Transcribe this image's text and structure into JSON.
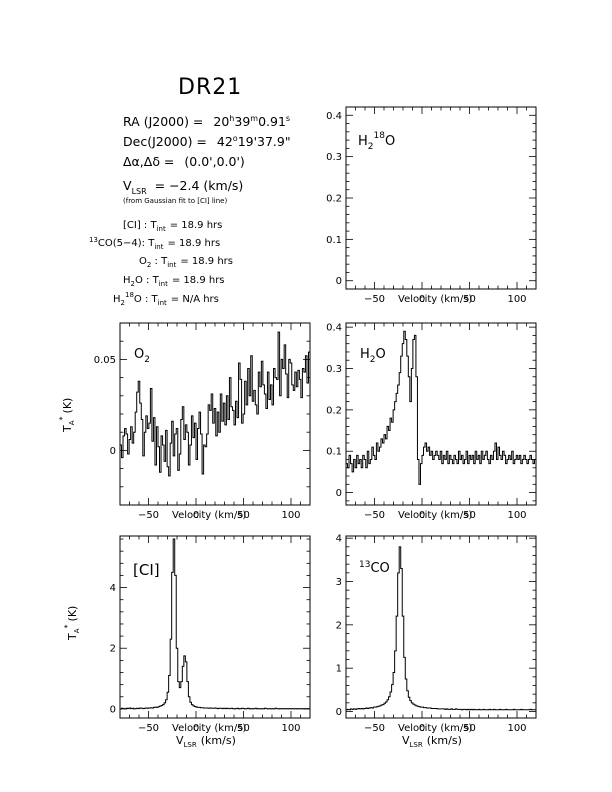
{
  "header": {
    "title": "DR21",
    "ra": {
      "label": "RA (J2000) =",
      "h": "20",
      "m": "39",
      "s": "0.91"
    },
    "dec": {
      "label": "Dec(J2000) =",
      "d": "42",
      "arcmin": "19",
      "arcsec": "37.9\""
    },
    "offset": {
      "label": "Δα,Δδ =",
      "value": "(0.0',0.0')"
    },
    "vlsr": {
      "label": "V",
      "sub": "LSR",
      "value": "= −2.4 (km/s)"
    },
    "vlsr_note": "(from Gaussian fit to [CI] line)"
  },
  "integrations": [
    {
      "pre": "",
      "sup": "",
      "name": "[CI]",
      "colon": " : T",
      "sub": "int",
      "value": "= 18.9 hrs"
    },
    {
      "pre": "",
      "sup": "13",
      "name": "CO(5−4):",
      "colon": " T",
      "sub": "int",
      "value": "= 18.9 hrs"
    },
    {
      "pre": "O",
      "sub0": "2",
      "name": "",
      "colon": " : T",
      "sub": "int",
      "value": "= 18.9 hrs"
    },
    {
      "pre": "H",
      "sub0": "2",
      "name": "O",
      "colon": " : T",
      "sub": "int",
      "value": "= 18.9 hrs"
    },
    {
      "pre": "H",
      "sub0": "2",
      "sup": "18",
      "name": "O",
      "colon": " : T",
      "sub": "int",
      "value": "= N/A hrs"
    }
  ],
  "axis_labels": {
    "x": "Velocity (km/s)",
    "x_bottom_main": "Velocity (km/s)",
    "x_bottom_vlsr": "V",
    "x_bottom_vlsr_sub": "LSR",
    "x_bottom_vlsr_unit": "(km/s)",
    "y_main": "T",
    "y_sub": "A",
    "y_sup": "*",
    "y_unit": "(K)"
  },
  "chart_data": [
    {
      "type": "line",
      "panel": "h218o",
      "label": "H218O",
      "xlim": [
        -80,
        120
      ],
      "ylim": [
        -0.02,
        0.42
      ],
      "xticks": [
        "−50",
        "0",
        "50",
        "100"
      ],
      "xtick_values": [
        -50,
        0,
        50,
        100
      ],
      "yticks": [
        "0",
        "0.1",
        "0.2",
        "0.3",
        "0.4"
      ],
      "ytick_values": [
        0,
        0.1,
        0.2,
        0.3,
        0.4
      ],
      "xlabel": "Velocity (km/s)",
      "ylabel": "",
      "series": []
    },
    {
      "type": "line",
      "panel": "o2",
      "label": "O2",
      "xlim": [
        -80,
        120
      ],
      "ylim": [
        -0.03,
        0.07
      ],
      "xticks": [
        "−50",
        "0",
        "50",
        "100"
      ],
      "xtick_values": [
        -50,
        0,
        50,
        100
      ],
      "yticks": [
        "0",
        "0.05"
      ],
      "ytick_values": [
        0,
        0.05
      ],
      "xlabel": "Velocity (km/s)",
      "ylabel": "TA* (K)",
      "series": [
        {
          "x_start": -80,
          "x_step": 1.6,
          "values": [
            0.003,
            -0.004,
            0.008,
            0.012,
            0.009,
            -0.002,
            0.006,
            0.013,
            0.004,
            0.01,
            0.021,
            0.032,
            0.038,
            0.026,
            0.017,
            -0.003,
            0.01,
            0.019,
            0.012,
            0.015,
            0.034,
            0.005,
            0.018,
            -0.008,
            0.013,
            0.002,
            -0.012,
            0.008,
            0.003,
            -0.006,
            0.011,
            -0.009,
            -0.014,
            0.004,
            0.016,
            -0.003,
            0.009,
            0.012,
            -0.011,
            -0.002,
            0.017,
            0.024,
            0.006,
            0.014,
            0.01,
            -0.008,
            0.003,
            0.019,
            0.007,
            0.015,
            -0.005,
            0.012,
            0.021,
            0.009,
            -0.013,
            0.003,
            0.002,
            0.009,
            0.025,
            0.022,
            0.031,
            0.015,
            0.023,
            0.008,
            0.021,
            0.01,
            0.031,
            0.016,
            0.026,
            0.014,
            0.03,
            0.017,
            0.04,
            0.024,
            0.022,
            0.014,
            0.027,
            0.018,
            0.048,
            0.039,
            0.015,
            0.02,
            0.038,
            0.025,
            0.045,
            0.03,
            0.052,
            0.027,
            0.033,
            0.025,
            0.02,
            0.043,
            0.035,
            0.049,
            0.036,
            0.031,
            0.023,
            0.043,
            0.028,
            0.036,
            0.025,
            0.045,
            0.04,
            0.039,
            0.065,
            0.03,
            0.05,
            0.045,
            0.058,
            0.042,
            0.029,
            0.05,
            0.048,
            0.036,
            0.033,
            0.043,
            0.035,
            0.044,
            0.039,
            0.029,
            0.045,
            0.043,
            0.052,
            0.037,
            0.054,
            0.044
          ]
        }
      ]
    },
    {
      "type": "line",
      "panel": "h2o",
      "label": "H2O",
      "xlim": [
        -80,
        120
      ],
      "ylim": [
        -0.03,
        0.41
      ],
      "xticks": [
        "−50",
        "0",
        "50",
        "100"
      ],
      "xtick_values": [
        -50,
        0,
        50,
        100
      ],
      "yticks": [
        "0",
        "0.1",
        "0.2",
        "0.3",
        "0.4"
      ],
      "ytick_values": [
        0,
        0.1,
        0.2,
        0.3,
        0.4
      ],
      "xlabel": "Velocity (km/s)",
      "ylabel": "",
      "series": [
        {
          "x_start": -80,
          "x_step": 1.6,
          "values": [
            0.07,
            0.06,
            0.09,
            0.07,
            0.05,
            0.08,
            0.06,
            0.09,
            0.07,
            0.08,
            0.06,
            0.09,
            0.08,
            0.06,
            0.1,
            0.07,
            0.08,
            0.11,
            0.09,
            0.08,
            0.12,
            0.1,
            0.11,
            0.13,
            0.12,
            0.14,
            0.13,
            0.16,
            0.15,
            0.18,
            0.17,
            0.2,
            0.22,
            0.24,
            0.26,
            0.29,
            0.33,
            0.36,
            0.39,
            0.37,
            0.33,
            0.28,
            0.22,
            0.3,
            0.37,
            0.38,
            0.28,
            0.08,
            0.02,
            0.07,
            0.09,
            0.11,
            0.12,
            0.1,
            0.11,
            0.09,
            0.1,
            0.08,
            0.09,
            0.1,
            0.09,
            0.08,
            0.1,
            0.07,
            0.09,
            0.08,
            0.1,
            0.07,
            0.09,
            0.08,
            0.07,
            0.09,
            0.08,
            0.07,
            0.1,
            0.08,
            0.09,
            0.07,
            0.08,
            0.1,
            0.07,
            0.09,
            0.08,
            0.09,
            0.07,
            0.1,
            0.08,
            0.09,
            0.07,
            0.1,
            0.08,
            0.09,
            0.1,
            0.08,
            0.07,
            0.09,
            0.08,
            0.1,
            0.12,
            0.08,
            0.11,
            0.09,
            0.08,
            0.1,
            0.09,
            0.07,
            0.08,
            0.09,
            0.08,
            0.1,
            0.07,
            0.08,
            0.09,
            0.08,
            0.09,
            0.07,
            0.08,
            0.09,
            0.08,
            0.07,
            0.08,
            0.09,
            0.08,
            0.07,
            0.08,
            0.09
          ]
        }
      ]
    },
    {
      "type": "line",
      "panel": "ci",
      "label": "[CI]",
      "xlim": [
        -80,
        120
      ],
      "ylim": [
        -0.3,
        5.7
      ],
      "xticks": [
        "−50",
        "0",
        "50",
        "100"
      ],
      "xtick_values": [
        -50,
        0,
        50,
        100
      ],
      "yticks": [
        "0",
        "2",
        "4"
      ],
      "ytick_values": [
        0,
        2,
        4
      ],
      "xlabel": "Velocity (km/s)",
      "ylabel": "TA* (K)",
      "series": [
        {
          "x_start": -80,
          "x_step": 1.6,
          "values": [
            0.0,
            0.02,
            0.01,
            0.0,
            0.02,
            0.01,
            0.03,
            0.01,
            0.02,
            0.0,
            0.01,
            0.02,
            0.01,
            0.03,
            0.02,
            0.01,
            0.02,
            0.03,
            0.02,
            0.03,
            0.04,
            0.03,
            0.05,
            0.06,
            0.05,
            0.07,
            0.09,
            0.11,
            0.14,
            0.2,
            0.3,
            0.55,
            1.1,
            2.3,
            4.5,
            5.6,
            4.4,
            2.0,
            0.9,
            0.7,
            0.9,
            1.4,
            1.75,
            1.55,
            0.9,
            0.4,
            0.22,
            0.14,
            0.1,
            0.08,
            0.06,
            0.05,
            0.05,
            0.04,
            0.04,
            0.03,
            0.03,
            0.03,
            0.02,
            0.03,
            0.02,
            0.02,
            0.03,
            0.02,
            0.01,
            0.02,
            0.02,
            0.01,
            0.02,
            0.01,
            0.02,
            0.01,
            0.01,
            0.02,
            0.01,
            0.0,
            0.01,
            0.02,
            0.0,
            0.01,
            0.02,
            0.01,
            0.0,
            0.01,
            0.02,
            0.0,
            0.01,
            0.0,
            0.01,
            0.02,
            0.0,
            0.01,
            0.0,
            0.01,
            0.0,
            0.02,
            0.01,
            0.0,
            0.01,
            0.0,
            0.01,
            0.0,
            0.02,
            0.01,
            0.0,
            0.01,
            0.0,
            0.01,
            0.0,
            0.01,
            0.0,
            0.01,
            0.0,
            0.01,
            0.0,
            0.01,
            0.0,
            0.01,
            0.0,
            0.01,
            0.0,
            0.01,
            0.0,
            0.01,
            0.0
          ]
        }
      ]
    },
    {
      "type": "line",
      "panel": "13co",
      "label": "13CO",
      "xlim": [
        -80,
        120
      ],
      "ylim": [
        -0.15,
        4.05
      ],
      "xticks": [
        "−50",
        "0",
        "50",
        "100"
      ],
      "xtick_values": [
        -50,
        0,
        50,
        100
      ],
      "yticks": [
        "0",
        "1",
        "2",
        "3",
        "4"
      ],
      "ytick_values": [
        0,
        1,
        2,
        3,
        4
      ],
      "xlabel": "Velocity (km/s)",
      "ylabel": "",
      "series": [
        {
          "x_start": -80,
          "x_step": 1.6,
          "values": [
            0.04,
            0.05,
            0.04,
            0.06,
            0.05,
            0.06,
            0.05,
            0.06,
            0.07,
            0.06,
            0.07,
            0.06,
            0.07,
            0.08,
            0.07,
            0.08,
            0.09,
            0.08,
            0.1,
            0.1,
            0.11,
            0.12,
            0.13,
            0.15,
            0.16,
            0.19,
            0.22,
            0.27,
            0.34,
            0.45,
            0.62,
            0.9,
            1.4,
            2.2,
            3.2,
            3.8,
            3.3,
            2.2,
            1.25,
            0.75,
            0.48,
            0.33,
            0.25,
            0.2,
            0.17,
            0.15,
            0.13,
            0.12,
            0.11,
            0.1,
            0.1,
            0.09,
            0.09,
            0.08,
            0.08,
            0.08,
            0.07,
            0.07,
            0.07,
            0.07,
            0.06,
            0.06,
            0.06,
            0.06,
            0.06,
            0.05,
            0.06,
            0.05,
            0.05,
            0.06,
            0.05,
            0.05,
            0.06,
            0.05,
            0.05,
            0.05,
            0.04,
            0.05,
            0.05,
            0.04,
            0.05,
            0.04,
            0.05,
            0.04,
            0.05,
            0.04,
            0.04,
            0.05,
            0.04,
            0.04,
            0.05,
            0.04,
            0.04,
            0.04,
            0.05,
            0.04,
            0.04,
            0.05,
            0.04,
            0.04,
            0.04,
            0.05,
            0.04,
            0.04,
            0.04,
            0.05,
            0.04,
            0.04,
            0.04,
            0.04,
            0.05,
            0.04,
            0.04,
            0.04,
            0.04,
            0.05,
            0.04,
            0.04,
            0.04,
            0.04,
            0.04,
            0.05,
            0.04,
            0.04,
            0.04,
            0.04
          ]
        }
      ]
    }
  ]
}
